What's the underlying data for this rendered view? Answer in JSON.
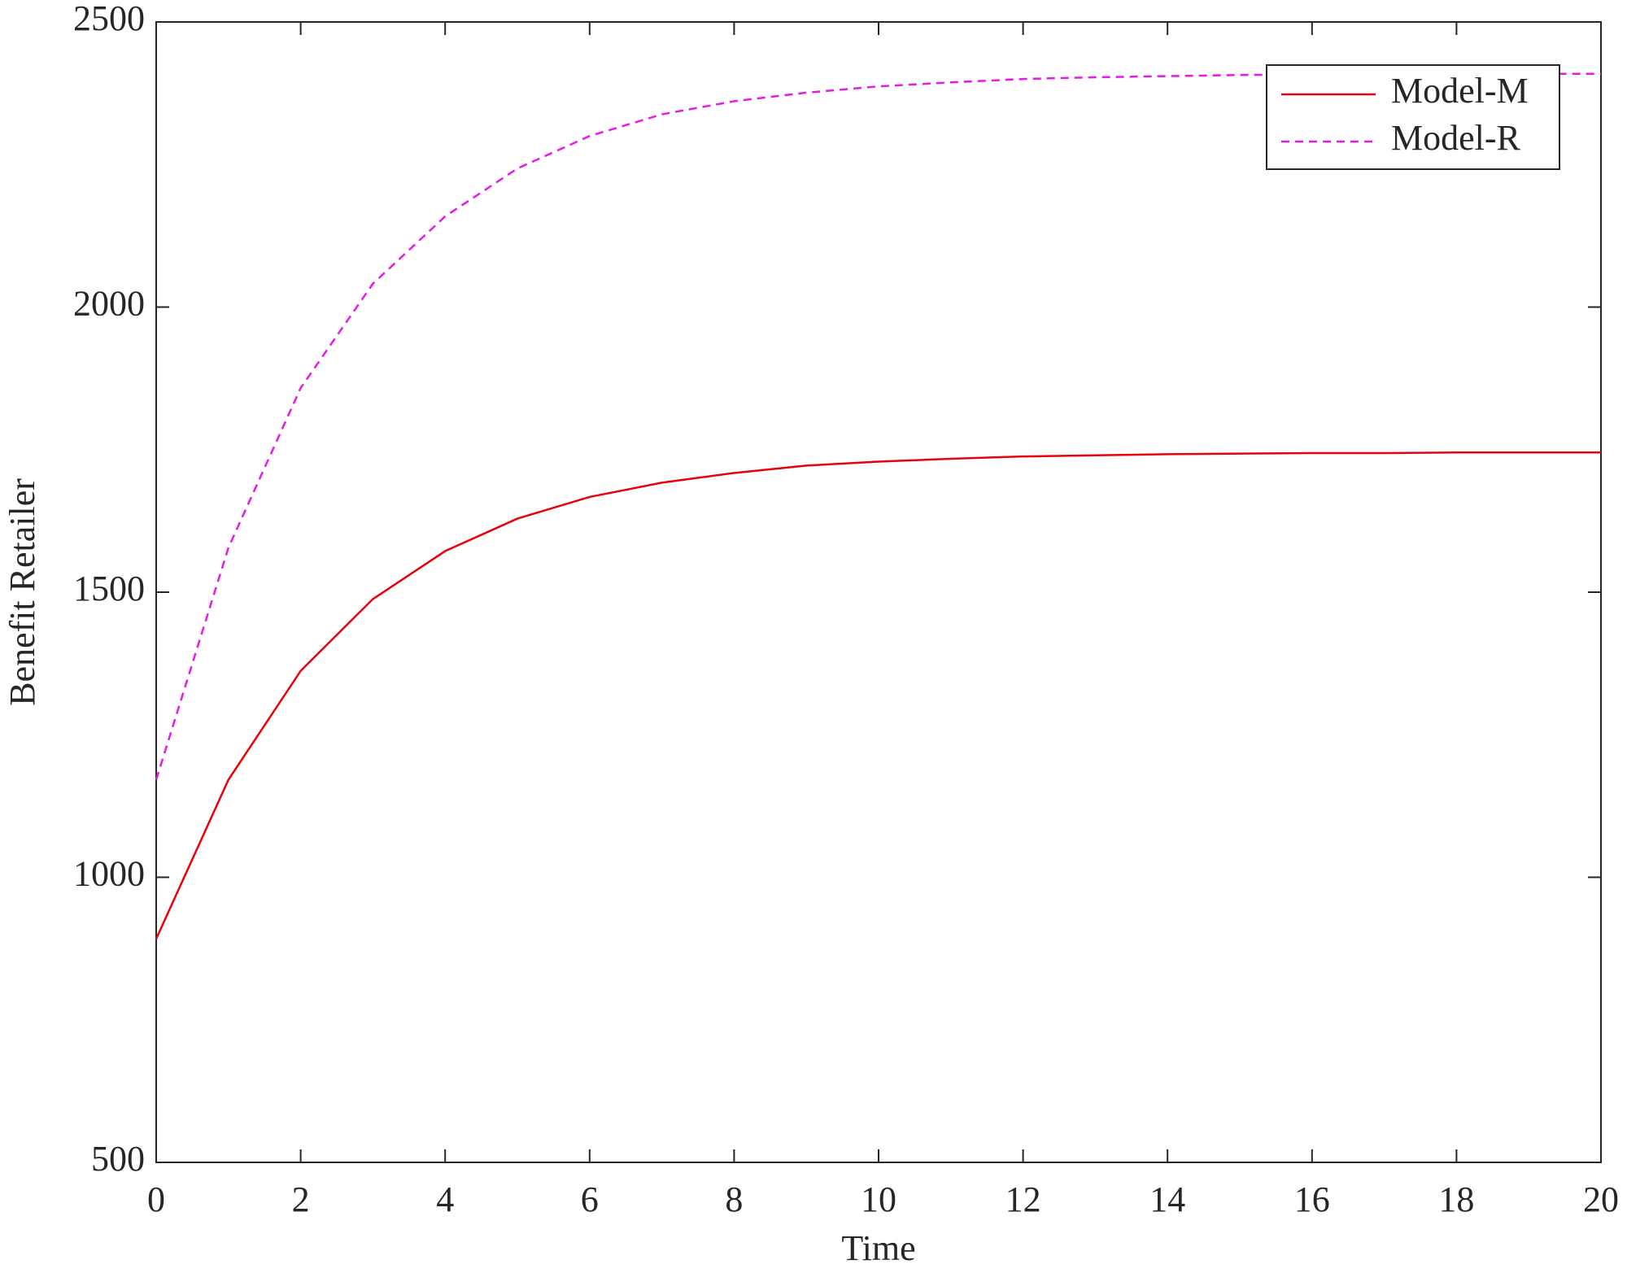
{
  "chart_data": {
    "type": "line",
    "x_label": "Time",
    "y_label": "Benefit Retailer",
    "x": [
      0,
      1,
      2,
      3,
      4,
      5,
      6,
      7,
      8,
      9,
      10,
      11,
      12,
      13,
      14,
      15,
      16,
      17,
      18,
      19,
      20
    ],
    "series": [
      {
        "name": "Model-M",
        "color": "#e8000b",
        "dash": false,
        "values": [
          892,
          1171,
          1362,
          1488,
          1572,
          1629,
          1667,
          1692,
          1709,
          1722,
          1729,
          1734,
          1738,
          1740,
          1742,
          1743,
          1744,
          1744,
          1745,
          1745,
          1745
        ]
      },
      {
        "name": "Model-R",
        "color": "#e619e6",
        "dash": true,
        "values": [
          1171,
          1578,
          1858,
          2041,
          2159,
          2243,
          2300,
          2338,
          2361,
          2376,
          2387,
          2394,
          2400,
          2403,
          2405,
          2407,
          2408,
          2409,
          2409,
          2409,
          2409
        ]
      }
    ],
    "xlim": [
      0,
      20
    ],
    "xticks": [
      0,
      2,
      4,
      6,
      8,
      10,
      12,
      14,
      16,
      18,
      20
    ],
    "ylim": [
      500,
      2500
    ],
    "yticks": [
      500,
      1000,
      1500,
      2000,
      2500
    ],
    "legend": "upper right"
  }
}
